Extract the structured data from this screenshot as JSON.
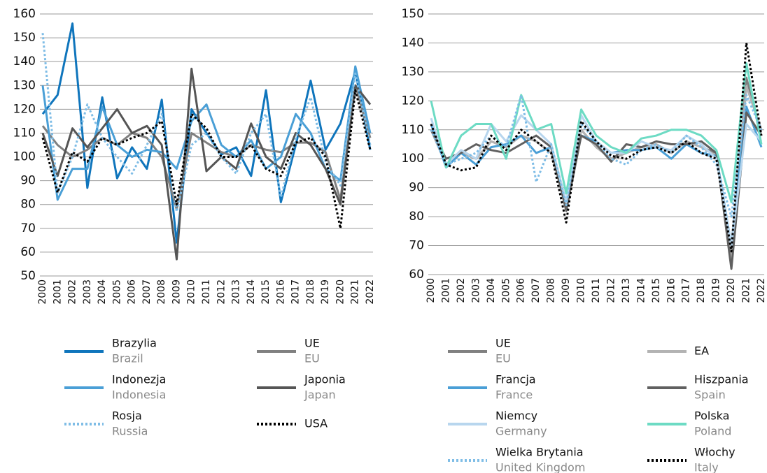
{
  "chart_data": [
    {
      "type": "line",
      "categories": [
        "2000",
        "2001",
        "2002",
        "2003",
        "2004",
        "2005",
        "2006",
        "2007",
        "2008",
        "2009",
        "2010",
        "2011",
        "2012",
        "2013",
        "2014",
        "2015",
        "2016",
        "2017",
        "2018",
        "2019",
        "2020",
        "2021",
        "2022"
      ],
      "ylim": [
        50,
        160
      ],
      "yticks": [
        50,
        60,
        70,
        80,
        90,
        100,
        110,
        120,
        130,
        140,
        150,
        160
      ],
      "grid": true,
      "series": [
        {
          "name": "Brazylia",
          "name_en": "Brazil",
          "color": "#0f75bc",
          "style": "solid",
          "values": [
            118,
            126,
            156,
            87,
            125,
            91,
            104,
            95,
            124,
            64,
            120,
            110,
            101,
            104,
            92,
            128,
            81,
            105,
            132,
            103,
            114,
            136,
            103
          ]
        },
        {
          "name": "UE",
          "name_en": "EU",
          "color": "#808080",
          "style": "solid",
          "values": [
            113,
            105,
            100,
            103,
            108,
            105,
            110,
            108,
            100,
            78,
            110,
            106,
            102,
            100,
            105,
            103,
            102,
            106,
            106,
            102,
            82,
            130,
            108
          ]
        },
        {
          "name": "Indonezja",
          "name_en": "Indonesia",
          "color": "#4a9fd6",
          "style": "solid",
          "values": [
            130,
            82,
            95,
            95,
            121,
            105,
            100,
            103,
            102,
            95,
            115,
            122,
            105,
            100,
            107,
            95,
            100,
            118,
            110,
            95,
            90,
            138,
            110
          ]
        },
        {
          "name": "Japonia",
          "name_en": "Japan",
          "color": "#555555",
          "style": "solid",
          "values": [
            110,
            92,
            112,
            104,
            112,
            120,
            110,
            113,
            105,
            57,
            137,
            94,
            100,
            95,
            114,
            100,
            95,
            110,
            105,
            95,
            80,
            130,
            122
          ]
        },
        {
          "name": "Rosja",
          "name_en": "Russia",
          "color": "#7fbde6",
          "style": "dotted",
          "values": [
            152,
            85,
            100,
            122,
            108,
            100,
            93,
            105,
            118,
            77,
            105,
            110,
            100,
            93,
            110,
            118,
            83,
            108,
            125,
            98,
            88,
            135,
            105
          ]
        },
        {
          "name": "USA",
          "color": "#000000",
          "style": "dotted",
          "values": [
            108,
            85,
            102,
            98,
            108,
            105,
            108,
            110,
            115,
            80,
            118,
            112,
            100,
            100,
            105,
            95,
            92,
            106,
            108,
            100,
            70,
            128,
            103
          ]
        }
      ]
    },
    {
      "type": "line",
      "categories": [
        "2000",
        "2001",
        "2002",
        "2003",
        "2004",
        "2005",
        "2006",
        "2007",
        "2008",
        "2009",
        "2010",
        "2011",
        "2012",
        "2013",
        "2014",
        "2015",
        "2016",
        "2017",
        "2018",
        "2019",
        "2020",
        "2021",
        "2022"
      ],
      "ylim": [
        60,
        150
      ],
      "yticks": [
        60,
        70,
        80,
        90,
        100,
        110,
        120,
        130,
        140,
        150
      ],
      "grid": true,
      "series": [
        {
          "name": "UE",
          "name_en": "EU",
          "color": "#808080",
          "style": "solid",
          "values": [
            110,
            98,
            102,
            100,
            106,
            104,
            108,
            106,
            102,
            84,
            110,
            104,
            100,
            102,
            104,
            105,
            102,
            106,
            104,
            102,
            64,
            128,
            108
          ]
        },
        {
          "name": "EA",
          "color": "#b3b3b3",
          "style": "solid",
          "values": [
            110,
            98,
            102,
            100,
            106,
            104,
            108,
            106,
            102,
            83,
            110,
            104,
            100,
            102,
            104,
            105,
            102,
            106,
            104,
            101,
            65,
            125,
            110
          ]
        },
        {
          "name": "Francja",
          "name_en": "France",
          "color": "#4a9fd6",
          "style": "solid",
          "values": [
            112,
            97,
            102,
            98,
            104,
            105,
            108,
            102,
            104,
            85,
            108,
            106,
            102,
            103,
            103,
            104,
            100,
            105,
            102,
            101,
            70,
            118,
            104
          ]
        },
        {
          "name": "Hiszpania",
          "name_en": "Spain",
          "color": "#606060",
          "style": "solid",
          "values": [
            110,
            100,
            102,
            105,
            103,
            102,
            105,
            108,
            104,
            82,
            108,
            105,
            99,
            105,
            104,
            106,
            105,
            105,
            106,
            102,
            62,
            116,
            108
          ]
        },
        {
          "name": "Niemcy",
          "name_en": "Germany",
          "color": "#b8d6ee",
          "style": "solid",
          "values": [
            114,
            98,
            103,
            100,
            112,
            106,
            115,
            110,
            105,
            85,
            115,
            106,
            102,
            102,
            106,
            104,
            103,
            108,
            105,
            100,
            70,
            112,
            106
          ]
        },
        {
          "name": "Polska",
          "name_en": "Poland",
          "color": "#6ddbc4",
          "style": "solid",
          "values": [
            120,
            97,
            108,
            112,
            112,
            100,
            122,
            110,
            112,
            88,
            117,
            108,
            104,
            102,
            107,
            108,
            110,
            110,
            108,
            103,
            85,
            133,
            105
          ]
        },
        {
          "name": "Wielka Brytania",
          "name_en": "United Kingdom",
          "color": "#7fbde6",
          "style": "dotted",
          "values": [
            110,
            98,
            100,
            102,
            108,
            104,
            122,
            92,
            105,
            84,
            112,
            106,
            100,
            98,
            103,
            105,
            102,
            108,
            104,
            98,
            80,
            122,
            110
          ]
        },
        {
          "name": "Włochy",
          "name_en": "Italy",
          "color": "#000000",
          "style": "dotted",
          "values": [
            112,
            98,
            96,
            97,
            108,
            103,
            110,
            106,
            102,
            78,
            113,
            106,
            101,
            100,
            103,
            104,
            102,
            106,
            102,
            100,
            68,
            140,
            108
          ]
        }
      ]
    }
  ]
}
